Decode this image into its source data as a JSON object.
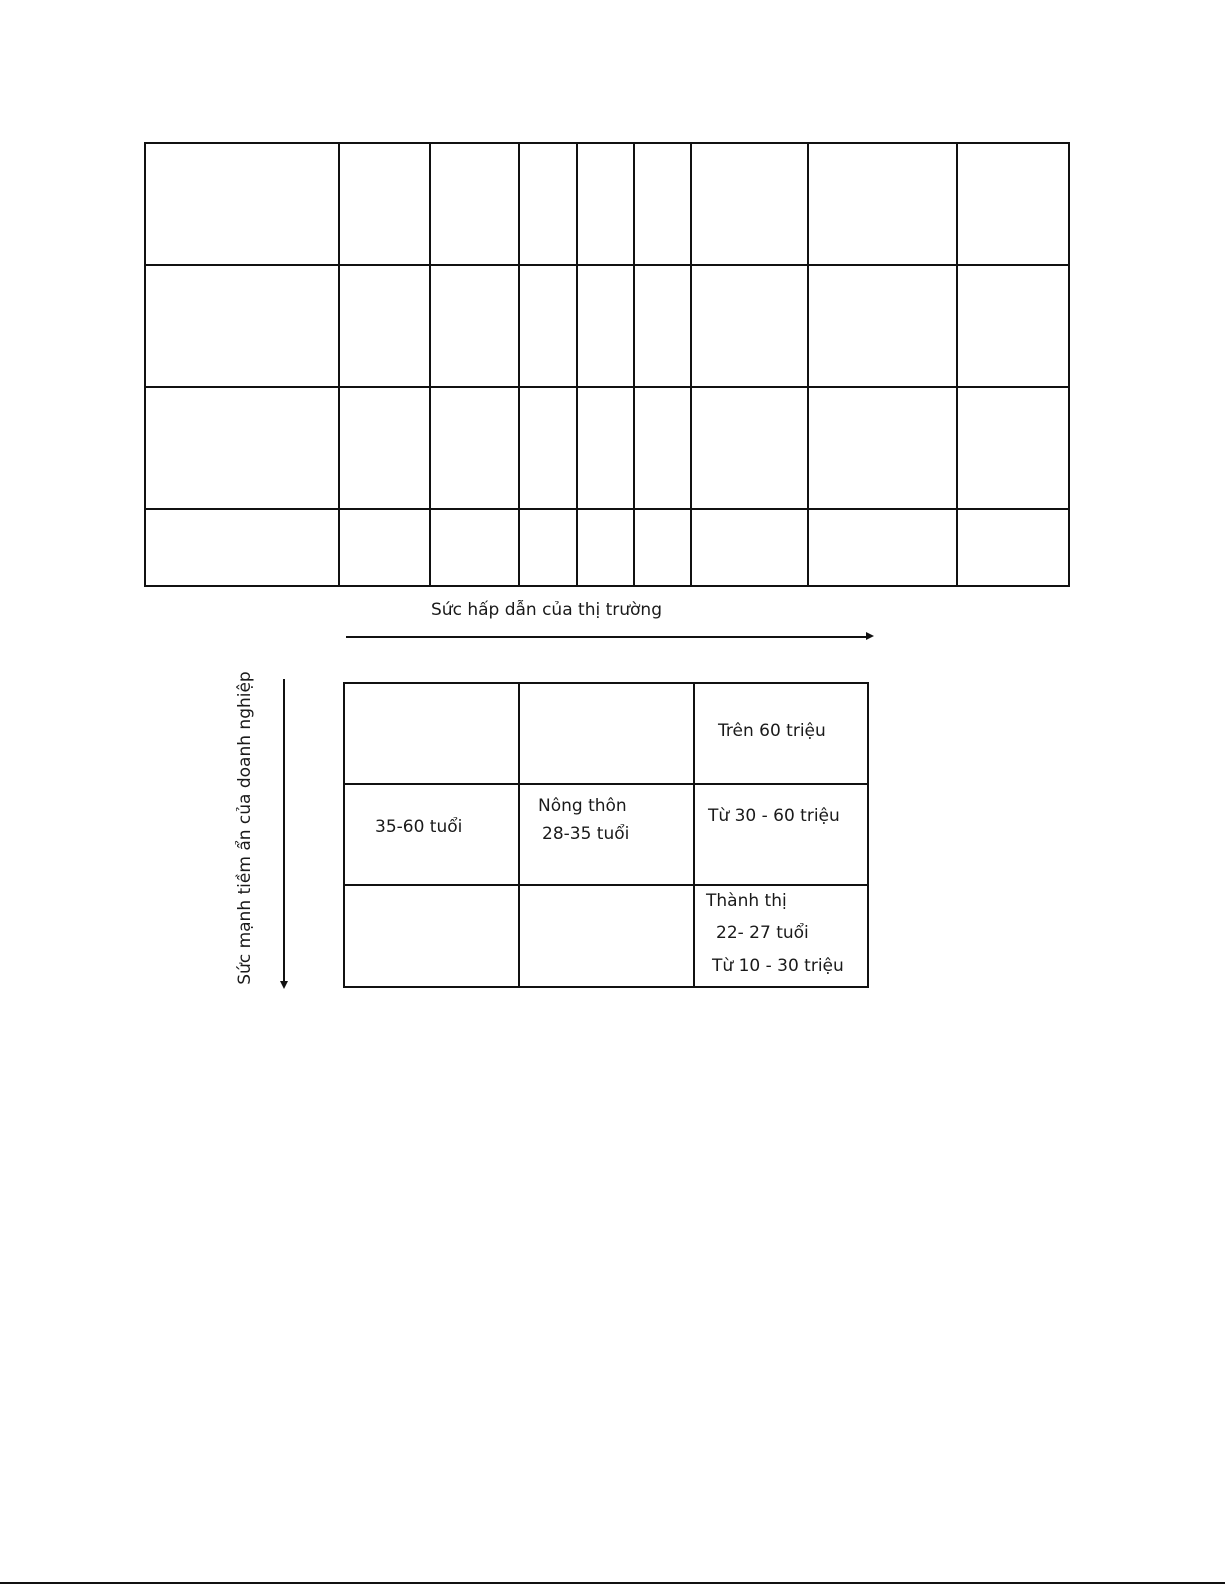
{
  "top_table": {
    "rows": 4,
    "columns": 9,
    "cells_empty": true
  },
  "matrix": {
    "x_axis_label": "Sức hấp dẫn của thị trường",
    "y_axis_label": "Sức mạnh tiềm ẩn của doanh nghiệp",
    "cells": [
      [
        "",
        "",
        "Trên 60 triệu"
      ],
      [
        "35-60 tuổi",
        "Nông thôn\n28-35 tuổi",
        "Từ 30 - 60 triệu"
      ],
      [
        "",
        "",
        "Thành thị\n22- 27 tuổi\nTừ 10 - 30 triệu"
      ]
    ],
    "r0c2": "Trên 60 triệu",
    "r1c0": "35-60 tuổi",
    "r1c1_line1": "Nông thôn",
    "r1c1_line2": "28-35 tuổi",
    "r1c2": "Từ 30 - 60 triệu",
    "r2c2_line1": "Thành thị",
    "r2c2_line2": "22- 27 tuổi",
    "r2c2_line3": "Từ 10 - 30 triệu"
  }
}
